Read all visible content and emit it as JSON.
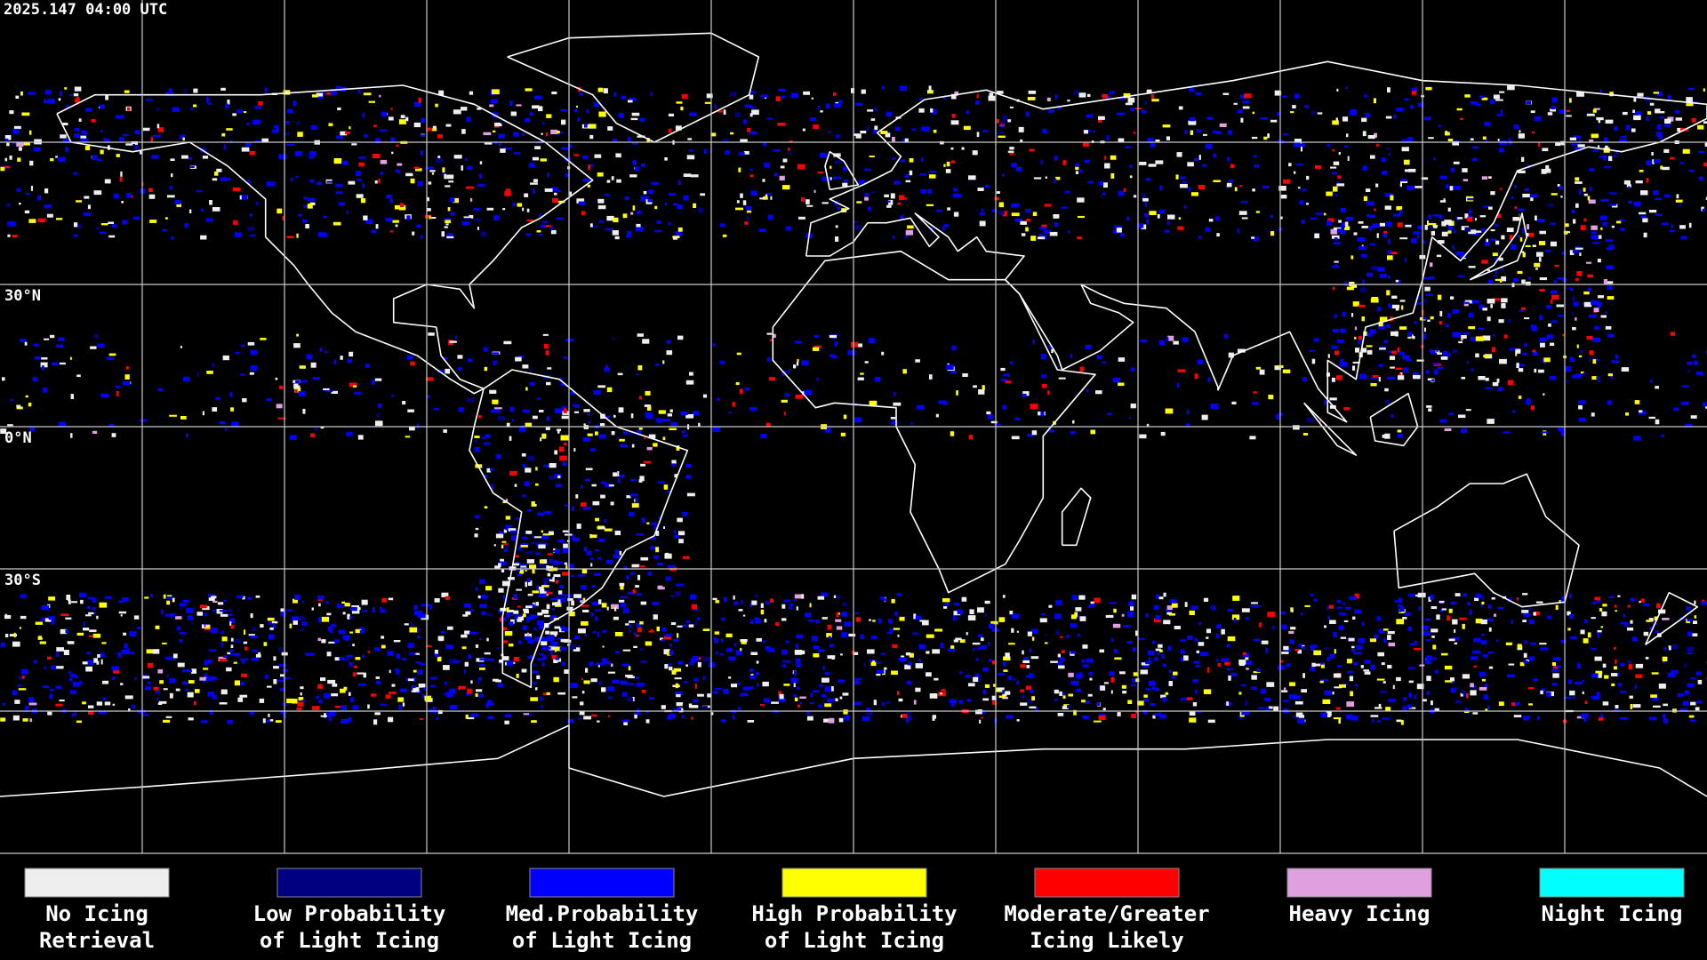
{
  "header": {
    "timestamp": "2025.147 04:00 UTC"
  },
  "map": {
    "latitude_labels": [
      "30°N",
      "0°N",
      "30°S"
    ]
  },
  "legend": [
    {
      "label": [
        "No Icing",
        "Retrieval"
      ],
      "color": "#eeeeee"
    },
    {
      "label": [
        "Low Probability",
        "of Light Icing"
      ],
      "color": "#000080"
    },
    {
      "label": [
        "Med.Probability",
        "of Light Icing"
      ],
      "color": "#0000ff"
    },
    {
      "label": [
        "High Probability",
        "of Light Icing"
      ],
      "color": "#ffff00"
    },
    {
      "label": [
        "Moderate/Greater",
        "Icing Likely"
      ],
      "color": "#ff0000"
    },
    {
      "label": [
        "Heavy Icing"
      ],
      "color": "#e0a0e0"
    },
    {
      "label": [
        "Night Icing"
      ],
      "color": "#00ffff"
    }
  ]
}
